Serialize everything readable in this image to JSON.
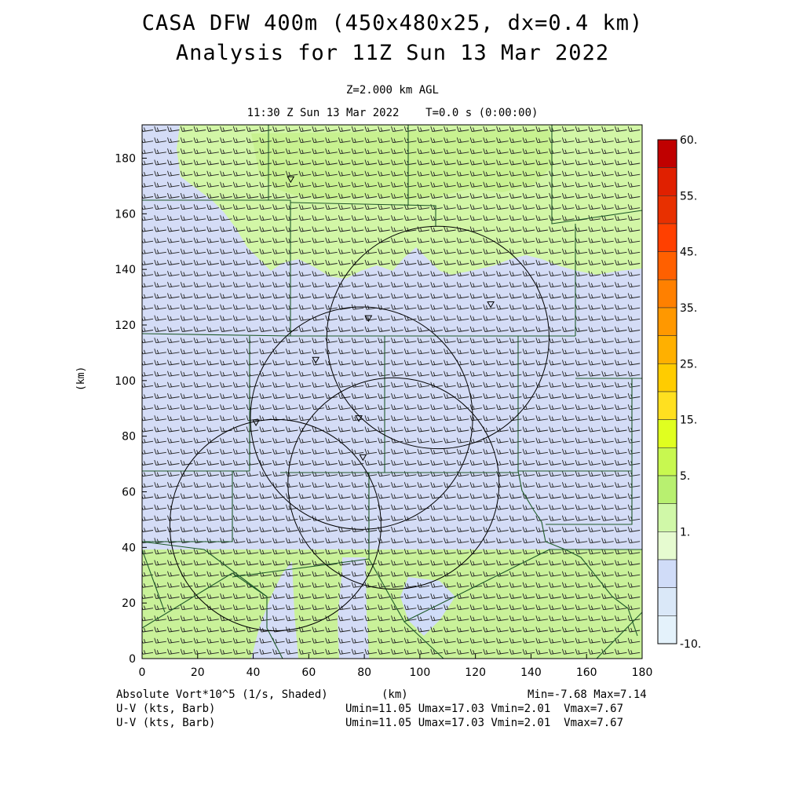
{
  "title_line1": "CASA DFW 400m (450x480x25, dx=0.4 km)",
  "title_line2": "Analysis for 11Z Sun 13 Mar 2022",
  "level_text": "Z=2.000 km AGL",
  "time_text": "11:30 Z Sun 13 Mar 2022    T=0.0 s (0:00:00)",
  "y_axis_label": "(km)",
  "x_axis_label": "(km)",
  "footer": {
    "line1_left": "Absolute Vort*10^5 (1/s, Shaded)",
    "line1_right": "Min=-7.68 Max=7.14",
    "line2_left": "U-V (kts, Barb)",
    "line2_right": "Umin=11.05 Umax=17.03 Vmin=2.01  Vmax=7.67",
    "line3_left": "U-V (kts, Barb)",
    "line3_right": "Umin=11.05 Umax=17.03 Vmin=2.01  Vmax=7.67"
  },
  "chart_data": {
    "type": "heatmap",
    "x_range_km": [
      0,
      180
    ],
    "y_range_km": [
      0,
      192
    ],
    "x_ticks": [
      "0",
      "20",
      "40",
      "60",
      "80",
      "100",
      "120",
      "140",
      "160",
      "180"
    ],
    "y_ticks": [
      "0",
      "20",
      "40",
      "60",
      "80",
      "100",
      "120",
      "140",
      "160",
      "180"
    ],
    "field": "Absolute Vort*10^5 (1/s, Shaded)",
    "colorbar": {
      "labels": [
        "60.",
        "55.",
        "45.",
        "35.",
        "25.",
        "15.",
        "5.",
        "1.",
        "-10."
      ],
      "colors": [
        "#c00000",
        "#e02000",
        "#e83000",
        "#ff4000",
        "#ff6000",
        "#ff8000",
        "#ff9800",
        "#ffb000",
        "#ffcc00",
        "#ffe020",
        "#e0ff20",
        "#c8f850",
        "#b8f070",
        "#d0f8a8",
        "#e6fbd0",
        "#d0dcf8",
        "#dae8f8",
        "#e4f2fb"
      ]
    },
    "radar_sites_km": [
      {
        "x": 53.5,
        "y": 172.5
      },
      {
        "x": 81.5,
        "y": 122.5
      },
      {
        "x": 125.5,
        "y": 127.5
      },
      {
        "x": 62.5,
        "y": 107.5
      },
      {
        "x": 78,
        "y": 86.5
      },
      {
        "x": 79.5,
        "y": 72.5
      },
      {
        "x": 41,
        "y": 85
      }
    ],
    "range_rings_km": [
      {
        "cx": 106.5,
        "cy": 115.5,
        "r": 40
      },
      {
        "cx": 79,
        "cy": 86.5,
        "r": 40
      },
      {
        "cx": 90.5,
        "cy": 63,
        "r": 38
      },
      {
        "cx": 48,
        "cy": 48,
        "r": 38
      }
    ],
    "min": -7.68,
    "max": 7.14,
    "barbs": {
      "field": "U-V (kts, Barb)",
      "umin": 11.05,
      "umax": 17.03,
      "vmin": 2.01,
      "vmax": 7.67
    }
  }
}
